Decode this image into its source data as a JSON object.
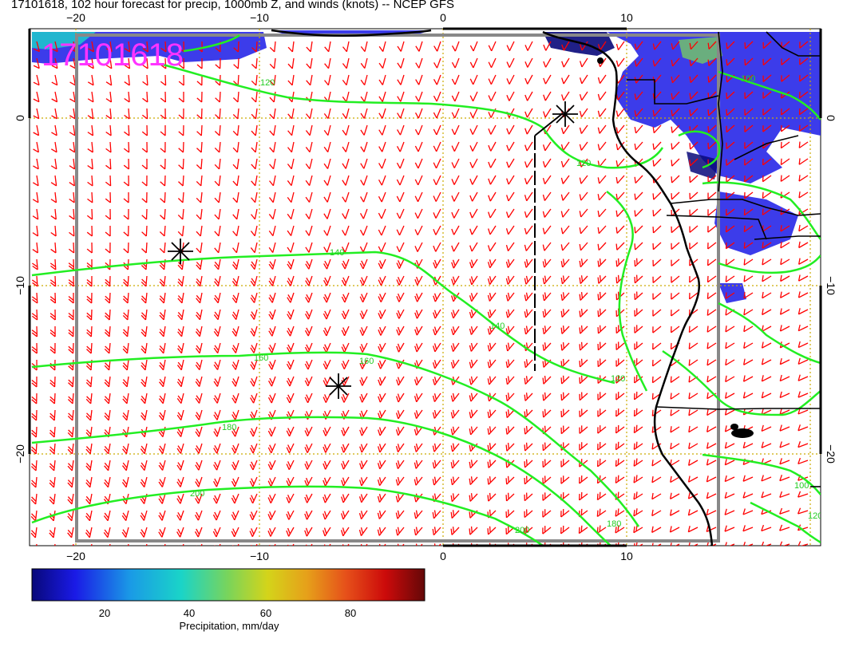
{
  "title": "17101618, 102 hour forecast for precip, 1000mb Z, and winds (knots) -- NCEP GFS",
  "stamp": "17101618",
  "axes": {
    "top_ticks": [
      "−20",
      "−10",
      "0",
      "10"
    ],
    "bottom_ticks": [
      "−20",
      "−10",
      "0",
      "10"
    ],
    "left_ticks": [
      "0",
      "−10",
      "−20"
    ],
    "right_ticks": [
      "0",
      "−10",
      "−20"
    ]
  },
  "contour_labels": [
    {
      "text": "120"
    },
    {
      "text": "140"
    },
    {
      "text": "160"
    },
    {
      "text": "180"
    },
    {
      "text": "200"
    },
    {
      "text": "140"
    },
    {
      "text": "120"
    },
    {
      "text": "160"
    },
    {
      "text": "180"
    },
    {
      "text": "200"
    },
    {
      "text": "120"
    },
    {
      "text": "100"
    },
    {
      "text": "100"
    },
    {
      "text": "120"
    }
  ],
  "colorbar": {
    "ticks": [
      "20",
      "40",
      "60",
      "80"
    ],
    "label": "Precipitation, mm/day",
    "colors": [
      "#08087a",
      "#1a1ae6",
      "#1a9ae6",
      "#1ad4c8",
      "#7ad45a",
      "#d4d41a",
      "#e6a01a",
      "#e6501a",
      "#cc0a0a",
      "#640808"
    ]
  },
  "colors": {
    "barbs": "#ff0000",
    "contours": "#22ee22",
    "grid": "#ccaa00",
    "coast": "#000000",
    "stamp": "#ff33ff"
  }
}
